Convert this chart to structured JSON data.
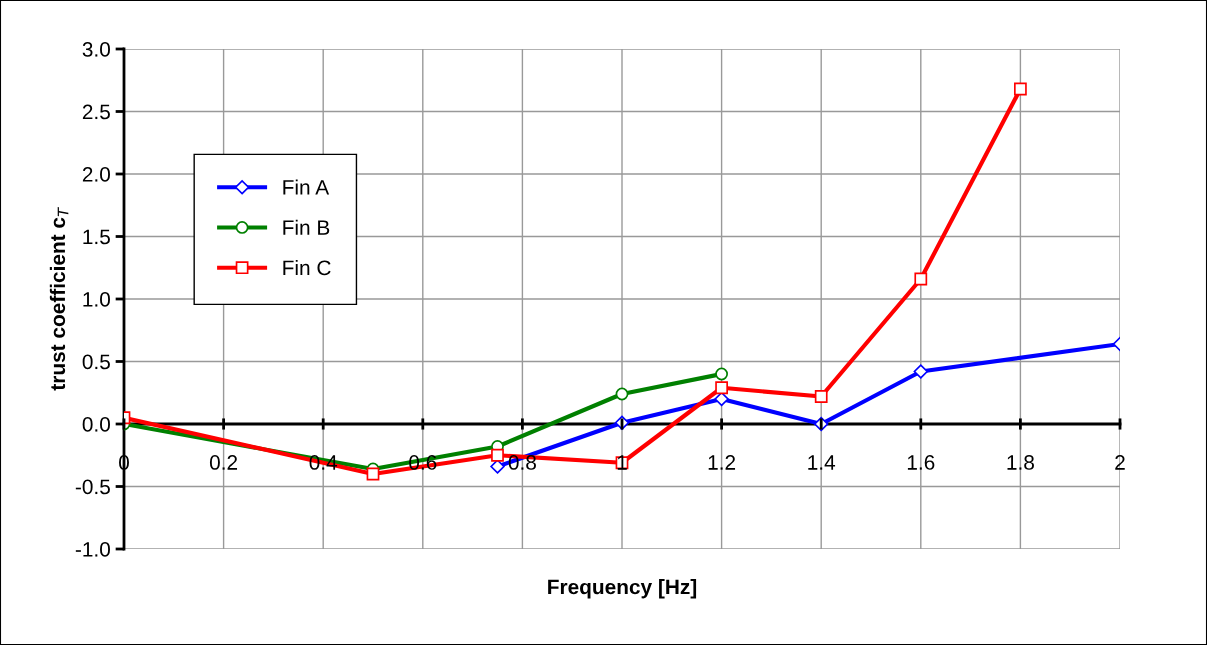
{
  "chart_data": {
    "type": "line",
    "xlabel": "Frequency [Hz]",
    "ylabel": "trust coefficient c$_{T}$",
    "xlim": [
      0,
      2
    ],
    "xticks": [
      0,
      0.2,
      0.4,
      0.6,
      0.8,
      1,
      1.2,
      1.4,
      1.6,
      1.8,
      2
    ],
    "ylim": [
      -1.0,
      3.0
    ],
    "yticks": [
      {
        "value": -1.0,
        "label": "-1.0"
      },
      {
        "value": -0.5,
        "label": "-0.5"
      },
      {
        "value": 0,
        "label": "0.0"
      },
      {
        "value": 0.5,
        "label": "0.5"
      },
      {
        "value": 1.0,
        "label": "1.0"
      },
      {
        "value": 1.5,
        "label": "1.5"
      },
      {
        "value": 2.0,
        "label": "2.0"
      },
      {
        "value": 2.5,
        "label": "2.5"
      },
      {
        "value": 3.0,
        "label": "3.0"
      }
    ],
    "grid": true,
    "legend": "top left",
    "line_style": "solid",
    "series": [
      {
        "name": "Fin A",
        "color": "#0000ff",
        "marker": "diamond",
        "x": [
          0.75,
          1.0,
          1.2,
          1.4,
          1.6,
          2.0
        ],
        "values": [
          -0.34,
          0.01,
          0.2,
          0.0,
          0.42,
          0.64
        ]
      },
      {
        "name": "Fin B",
        "color": "#008000",
        "marker": "circle",
        "x": [
          0,
          0.5,
          0.75,
          1.0,
          1.2
        ],
        "values": [
          0.0,
          -0.36,
          -0.18,
          0.24,
          0.4
        ]
      },
      {
        "name": "Fin C",
        "color": "#ff0000",
        "marker": "square",
        "x": [
          0,
          0.5,
          0.75,
          1.0,
          1.2,
          1.4,
          1.6,
          1.8
        ],
        "values": [
          0.05,
          -0.4,
          -0.25,
          -0.31,
          0.29,
          0.22,
          1.16,
          2.68
        ]
      }
    ]
  }
}
